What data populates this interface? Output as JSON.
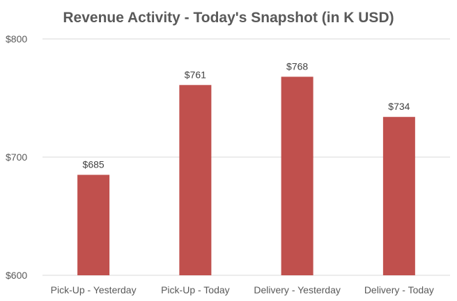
{
  "chart_data": {
    "type": "bar",
    "title": "Revenue Activity - Today's Snapshot (in K USD)",
    "xlabel": "",
    "ylabel": "",
    "categories": [
      "Pick-Up - Yesterday",
      "Pick-Up - Today",
      "Delivery - Yesterday",
      "Delivery - Today"
    ],
    "values": [
      685,
      761,
      768,
      734
    ],
    "data_labels": [
      "$685",
      "$761",
      "$768",
      "$734"
    ],
    "ylim": [
      600,
      800
    ],
    "yticks": [
      600,
      700,
      800
    ],
    "ytick_labels": [
      "$600",
      "$700",
      "$800"
    ],
    "grid": true,
    "legend": "none",
    "colors": {
      "bar": "#C0504D",
      "grid": "#D9D9D9",
      "axis_text": "#595959",
      "data_label": "#404040",
      "title": "#595959"
    }
  }
}
